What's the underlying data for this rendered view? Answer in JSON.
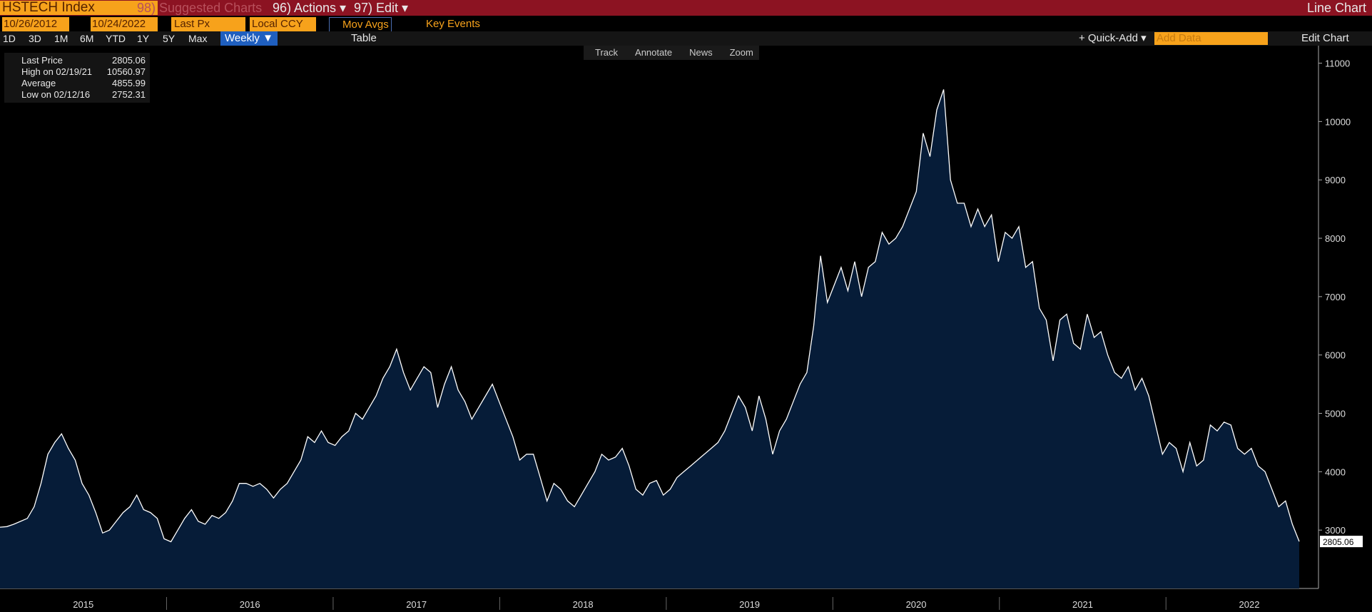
{
  "ui": {
    "security": "HSTECH Index",
    "suggested": "98) Suggested Charts",
    "actions": "96) Actions ▾",
    "edit": "97) Edit ▾",
    "view": "Line Chart",
    "start_date": "10/26/2012",
    "end_date": "10/24/2022",
    "field": "Last Px",
    "currency": "Local CCY",
    "mov_avgs": "Mov Avgs",
    "key_events": "Key Events",
    "periods": [
      "1D",
      "3D",
      "1M",
      "6M",
      "YTD",
      "1Y",
      "5Y",
      "Max"
    ],
    "frequency": "Weekly ▼",
    "table": "Table",
    "quick_add": "+ Quick-Add ▾",
    "add_data": "Add Data",
    "edit_chart": "Edit Chart",
    "tools": [
      "Track",
      "Annotate",
      "News",
      "Zoom"
    ]
  },
  "chart_data": {
    "type": "area",
    "stats": [
      {
        "label": "Last Price",
        "value": "2805.06"
      },
      {
        "label": "High on 02/19/21",
        "value": "10560.97"
      },
      {
        "label": "Average",
        "value": "4855.99"
      },
      {
        "label": "Low on 02/12/16",
        "value": "2752.31"
      }
    ],
    "year_labels": [
      "2015",
      "2016",
      "2017",
      "2018",
      "2019",
      "2020",
      "2021",
      "2022"
    ],
    "xlim": [
      2015,
      2022.8
    ],
    "xticks": [
      2016,
      2017,
      2018,
      2019,
      2020,
      2021,
      2022
    ],
    "ylim": [
      2000,
      11300
    ],
    "yticks": [
      3000,
      4000,
      5000,
      6000,
      7000,
      8000,
      9000,
      10000,
      11000
    ],
    "series": [
      {
        "name": "Last Price",
        "color": "#ffffff",
        "fill": "#061c38",
        "values": [
          3050,
          3060,
          3100,
          3150,
          3200,
          3400,
          3800,
          4300,
          4500,
          4650,
          4400,
          4200,
          3800,
          3600,
          3300,
          2950,
          3000,
          3150,
          3300,
          3400,
          3600,
          3350,
          3300,
          3200,
          2850,
          2800,
          3000,
          3200,
          3350,
          3150,
          3100,
          3250,
          3200,
          3300,
          3500,
          3800,
          3800,
          3750,
          3800,
          3700,
          3550,
          3700,
          3800,
          4000,
          4200,
          4600,
          4500,
          4700,
          4500,
          4450,
          4600,
          4700,
          5000,
          4900,
          5100,
          5300,
          5600,
          5800,
          6100,
          5700,
          5400,
          5600,
          5800,
          5700,
          5100,
          5500,
          5800,
          5400,
          5200,
          4900,
          5100,
          5300,
          5500,
          5200,
          4900,
          4600,
          4200,
          4300,
          4300,
          3900,
          3500,
          3800,
          3700,
          3500,
          3400,
          3600,
          3800,
          4000,
          4300,
          4200,
          4250,
          4400,
          4100,
          3700,
          3600,
          3800,
          3850,
          3600,
          3700,
          3900,
          4000,
          4100,
          4200,
          4300,
          4400,
          4500,
          4700,
          5000,
          5300,
          5100,
          4700,
          5300,
          4900,
          4300,
          4700,
          4900,
          5200,
          5500,
          5700,
          6500,
          7700,
          6900,
          7200,
          7500,
          7100,
          7600,
          7000,
          7500,
          7600,
          8100,
          7900,
          8000,
          8200,
          8500,
          8800,
          9800,
          9400,
          10200,
          10550,
          9000,
          8600,
          8600,
          8200,
          8500,
          8200,
          8400,
          7600,
          8100,
          8000,
          8200,
          7500,
          7600,
          6800,
          6600,
          5900,
          6600,
          6700,
          6200,
          6100,
          6700,
          6300,
          6400,
          6000,
          5700,
          5600,
          5800,
          5400,
          5600,
          5300,
          4800,
          4300,
          4500,
          4400,
          4000,
          4500,
          4100,
          4200,
          4800,
          4700,
          4850,
          4800,
          4400,
          4300,
          4400,
          4100,
          4000,
          3700,
          3400,
          3500,
          3100,
          2805.06
        ]
      }
    ]
  }
}
